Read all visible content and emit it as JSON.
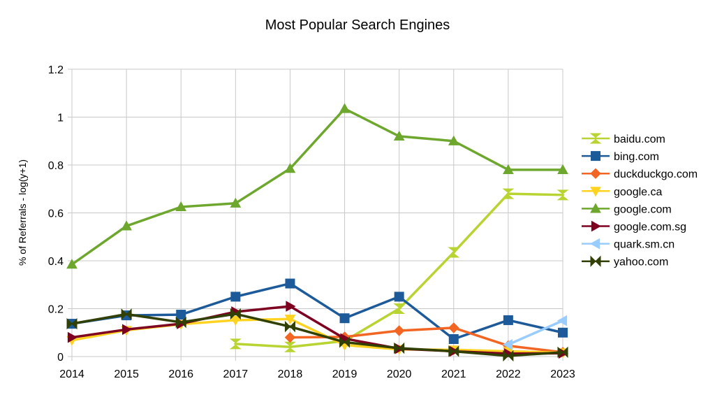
{
  "chart_data": {
    "type": "line",
    "title": "Most Popular Search Engines",
    "xlabel": "",
    "ylabel": "% of Referrals - log(y+1)",
    "ylim": [
      0,
      1.2
    ],
    "yticks": [
      "0",
      "0.2",
      "0.4",
      "0.6",
      "0.8",
      "1",
      "1.2"
    ],
    "ytick_values": [
      0,
      0.2,
      0.4,
      0.6,
      0.8,
      1,
      1.2
    ],
    "categories": [
      "2014",
      "2015",
      "2016",
      "2017",
      "2018",
      "2019",
      "2020",
      "2021",
      "2022",
      "2023"
    ],
    "grid": true,
    "legend_placement": "right",
    "series": [
      {
        "name": "baidu.com",
        "color": "#b8d432",
        "marker": "hourglass",
        "values": [
          null,
          null,
          null,
          0.053,
          0.04,
          0.065,
          0.2,
          0.435,
          0.68,
          0.675
        ]
      },
      {
        "name": "bing.com",
        "color": "#1c5a9a",
        "marker": "square",
        "values": [
          0.137,
          0.172,
          0.175,
          0.25,
          0.305,
          0.16,
          0.25,
          0.073,
          0.152,
          0.1
        ]
      },
      {
        "name": "duckduckgo.com",
        "color": "#f26522",
        "marker": "diamond",
        "values": [
          null,
          null,
          null,
          null,
          0.08,
          0.082,
          0.108,
          0.12,
          0.045,
          0.018
        ]
      },
      {
        "name": "google.ca",
        "color": "#ffd320",
        "marker": "triangle-down",
        "values": [
          0.068,
          0.11,
          0.135,
          0.152,
          0.157,
          0.048,
          0.03,
          0.028,
          0.022,
          0.016
        ]
      },
      {
        "name": "google.com",
        "color": "#6ea72e",
        "marker": "triangle-up",
        "values": [
          0.385,
          0.545,
          0.625,
          0.64,
          0.785,
          1.035,
          0.92,
          0.9,
          0.78,
          0.78
        ]
      },
      {
        "name": "google.com.sg",
        "color": "#7e0021",
        "marker": "triangle-right",
        "values": [
          0.08,
          0.113,
          0.137,
          0.187,
          0.21,
          0.075,
          0.033,
          0.022,
          0.012,
          0.014
        ]
      },
      {
        "name": "quark.sm.cn",
        "color": "#99ccff",
        "marker": "triangle-left",
        "values": [
          null,
          null,
          null,
          null,
          null,
          null,
          null,
          null,
          0.05,
          0.15
        ]
      },
      {
        "name": "yahoo.com",
        "color": "#314004",
        "marker": "bowtie",
        "values": [
          0.137,
          0.177,
          0.143,
          0.178,
          0.125,
          0.06,
          0.035,
          0.022,
          0.003,
          0.018
        ]
      }
    ]
  }
}
